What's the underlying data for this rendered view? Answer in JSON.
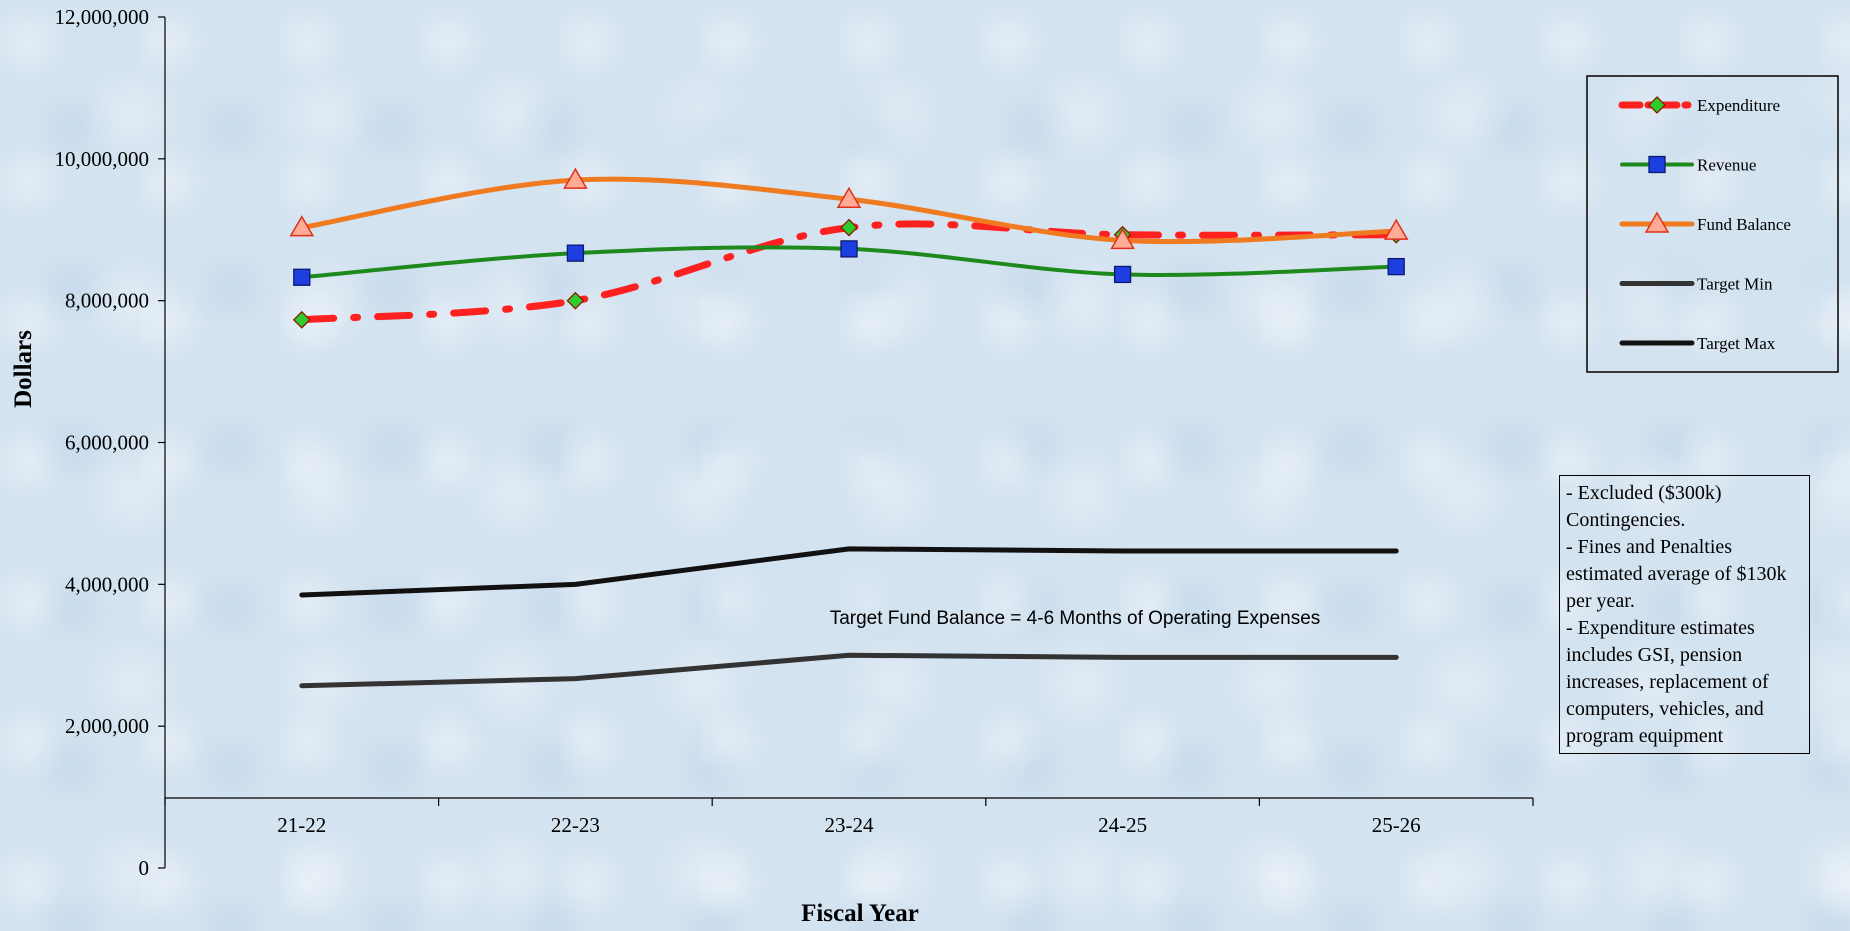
{
  "chart_data": {
    "type": "line",
    "xlabel": "Fiscal Year",
    "ylabel": "Dollars",
    "ylim": [
      0,
      12000000
    ],
    "yticks": [
      0,
      2000000,
      4000000,
      6000000,
      8000000,
      10000000,
      12000000
    ],
    "ytick_labels": [
      "0",
      "2,000,000",
      "4,000,000",
      "6,000,000",
      "8,000,000",
      "10,000,000",
      "12,000,000"
    ],
    "categories": [
      "21-22",
      "22-23",
      "23-24",
      "24-25",
      "25-26"
    ],
    "grid": false,
    "legend_position": "right",
    "series": [
      {
        "name": "Expenditure",
        "values": [
          7730000,
          8000000,
          9030000,
          8930000,
          8930000
        ],
        "color": "#ff2020",
        "marker": "diamond",
        "marker_color": "#2ecc2e"
      },
      {
        "name": "Revenue",
        "values": [
          8330000,
          8670000,
          8730000,
          8370000,
          8480000
        ],
        "color": "#1e8a1e",
        "marker": "square",
        "marker_color": "#1d3fe0"
      },
      {
        "name": "Fund Balance",
        "values": [
          9030000,
          9700000,
          9430000,
          8850000,
          8980000
        ],
        "color": "#f07a20",
        "marker": "triangle",
        "marker_color": "#ffab95"
      },
      {
        "name": "Target Min",
        "values": [
          2570000,
          2670000,
          3000000,
          2970000,
          2970000
        ],
        "color": "#333333"
      },
      {
        "name": "Target Max",
        "values": [
          3850000,
          4000000,
          4500000,
          4470000,
          4470000
        ],
        "color": "#111111"
      }
    ],
    "annotation": "Target Fund Balance = 4-6 Months of Operating Expenses"
  },
  "notes": [
    "- Excluded ($300k)",
    "Contingencies.",
    "- Fines and Penalties",
    "estimated  average of  $130k",
    "per year.",
    "- Expenditure estimates",
    "includes GSI, pension",
    "increases, replacement of",
    "computers, vehicles, and",
    "program equipment"
  ]
}
